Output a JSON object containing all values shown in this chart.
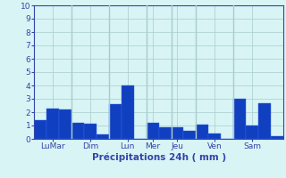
{
  "bars": [
    {
      "value": 1.4
    },
    {
      "value": 2.3
    },
    {
      "value": 2.2
    },
    {
      "value": 1.2
    },
    {
      "value": 1.15
    },
    {
      "value": 0.35
    },
    {
      "value": 2.6
    },
    {
      "value": 4.0
    },
    {
      "value": 0.0
    },
    {
      "value": 1.2
    },
    {
      "value": 0.9
    },
    {
      "value": 0.9
    },
    {
      "value": 0.6
    },
    {
      "value": 1.05
    },
    {
      "value": 0.4
    },
    {
      "value": 0.0
    },
    {
      "value": 3.0
    },
    {
      "value": 1.0
    },
    {
      "value": 2.7
    },
    {
      "value": 0.2
    }
  ],
  "day_labels": [
    "LuMar",
    "Dim",
    "Lun",
    "Mer",
    "Jeu",
    "Ven",
    "Sam"
  ],
  "day_tick_positions": [
    1,
    4,
    7,
    9,
    11,
    14,
    17
  ],
  "bar_color": "#1040c0",
  "bar_color_light": "#3366ee",
  "background_color": "#d8f4f4",
  "grid_color": "#aacccc",
  "axis_color": "#3344aa",
  "tick_label_color": "#3344aa",
  "xlabel": "Précipitations 24h ( mm )",
  "ylim": [
    0,
    10
  ],
  "yticks": [
    0,
    1,
    2,
    3,
    4,
    5,
    6,
    7,
    8,
    9,
    10
  ],
  "n_bars": 20
}
